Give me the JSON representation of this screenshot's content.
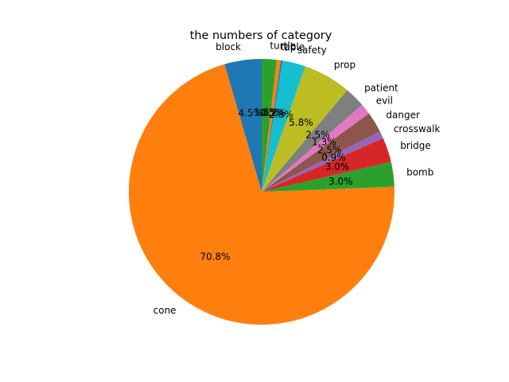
{
  "chart_data": {
    "type": "pie",
    "title": "the numbers of category",
    "start_angle_deg": 90,
    "direction": "counterclockwise",
    "slices": [
      {
        "label": "block",
        "pct_label": "4.5%",
        "value": 4.5,
        "color": "#1f77b4"
      },
      {
        "label": "cone",
        "pct_label": "70.8%",
        "value": 70.8,
        "color": "#ff7f0e"
      },
      {
        "label": "bomb",
        "pct_label": "3.0%",
        "value": 3.0,
        "color": "#2ca02c"
      },
      {
        "label": "bridge",
        "pct_label": "3.0%",
        "value": 3.0,
        "color": "#d62728"
      },
      {
        "label": "crosswalk",
        "pct_label": "0.9%",
        "value": 0.9,
        "color": "#9467bd"
      },
      {
        "label": "danger",
        "pct_label": "2.5%",
        "value": 2.5,
        "color": "#8c564b"
      },
      {
        "label": "evil",
        "pct_label": "1.3%",
        "value": 1.3,
        "color": "#e377c2"
      },
      {
        "label": "patient",
        "pct_label": "2.5%",
        "value": 2.5,
        "color": "#7f7f7f"
      },
      {
        "label": "prop",
        "pct_label": "5.8%",
        "value": 5.8,
        "color": "#bcbd22"
      },
      {
        "label": "safety",
        "pct_label": "2.8%",
        "value": 2.8,
        "color": "#17becf"
      },
      {
        "label": "tip",
        "pct_label": "0.2%",
        "value": 0.2,
        "color": "#1f77b4"
      },
      {
        "label": "table",
        "pct_label": "0.5%",
        "value": 0.5,
        "color": "#ff7f0e"
      },
      {
        "label": "turtle",
        "pct_label": "1.8%",
        "value": 1.8,
        "color": "#2ca02c"
      }
    ]
  }
}
